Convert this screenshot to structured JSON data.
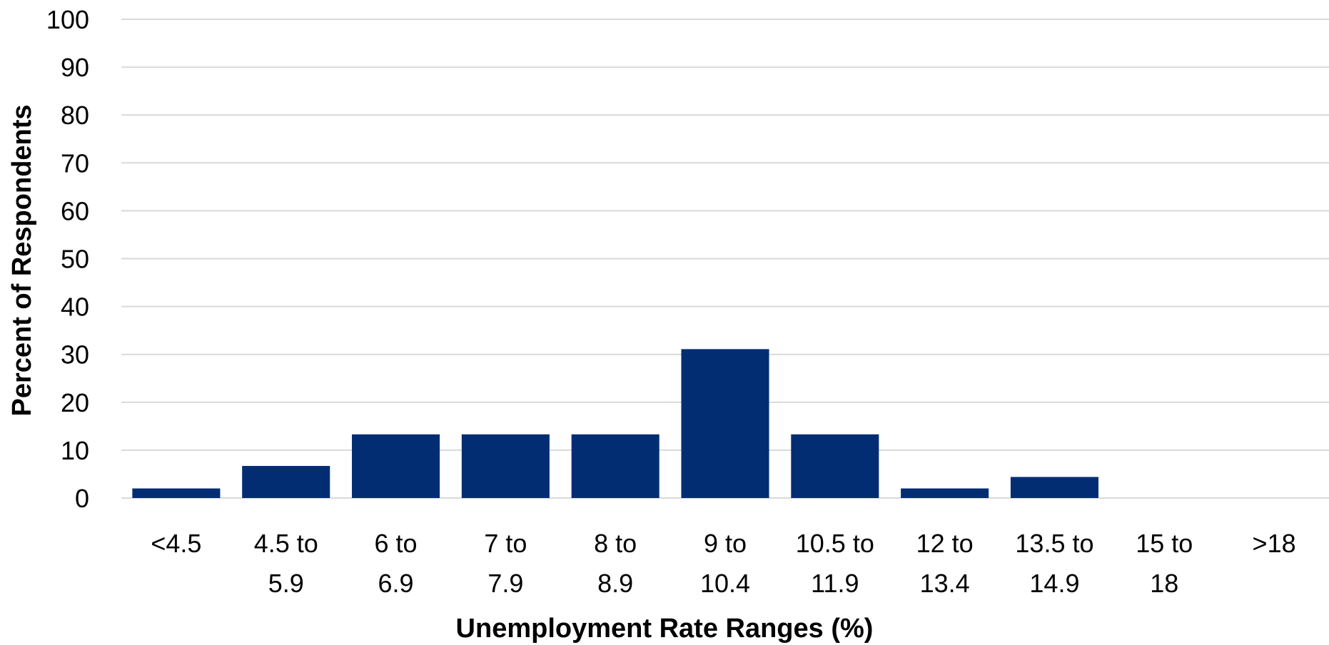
{
  "chart_data": {
    "type": "bar",
    "title": "",
    "xlabel": "Unemployment Rate Ranges (%)",
    "ylabel": "Percent of Respondents",
    "ylim": [
      0,
      100
    ],
    "yticks": [
      "0",
      "10",
      "20",
      "30",
      "40",
      "50",
      "60",
      "70",
      "80",
      "90",
      "100"
    ],
    "grid": true,
    "categories": [
      [
        "<4.5"
      ],
      [
        "4.5 to",
        "5.9"
      ],
      [
        "6 to",
        "6.9"
      ],
      [
        "7 to",
        "7.9"
      ],
      [
        "8 to",
        "8.9"
      ],
      [
        "9 to",
        "10.4"
      ],
      [
        "10.5 to",
        "11.9"
      ],
      [
        "12 to",
        "13.4"
      ],
      [
        "13.5 to",
        "14.9"
      ],
      [
        "15 to",
        "18"
      ],
      [
        ">18"
      ]
    ],
    "values": [
      2,
      6.7,
      13.3,
      13.3,
      13.3,
      31.1,
      13.3,
      2,
      4.4,
      0,
      0
    ],
    "colors": {
      "bar": "#032d73",
      "grid": "#d9d9d9"
    }
  }
}
